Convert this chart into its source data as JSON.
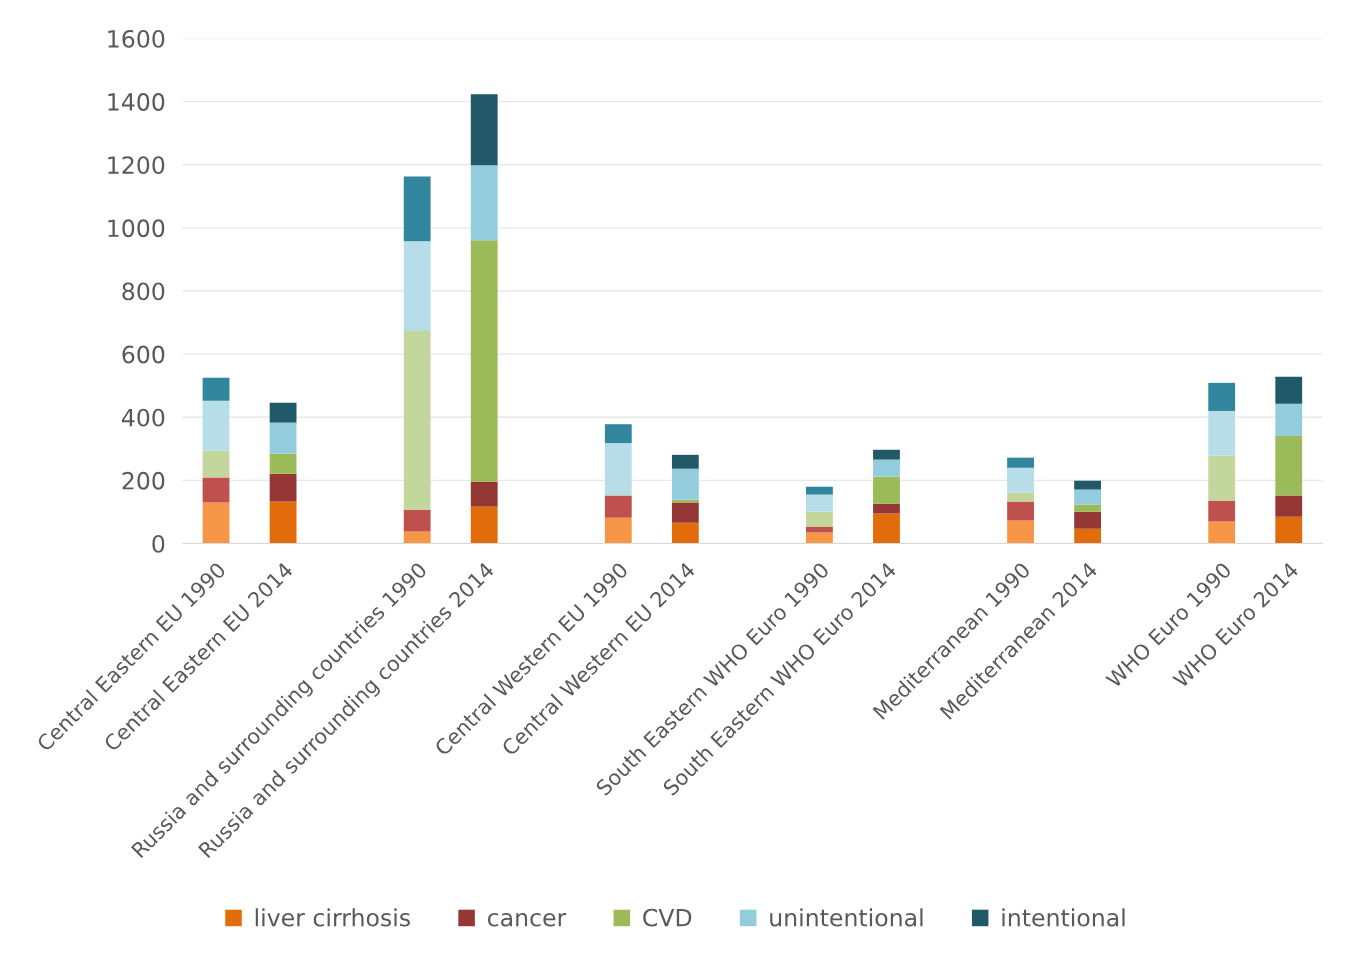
{
  "chart_data": {
    "type": "bar",
    "stacked": true,
    "grid": "y",
    "legend": "bottom",
    "categories": [
      "Central Eastern EU 1990",
      "Central Eastern EU 2014",
      null,
      "Russia and surrounding countries 1990",
      "Russia and surrounding countries 2014",
      null,
      "Central Western EU 1990",
      "Central Western EU 2014",
      null,
      "South Eastern WHO Euro 1990",
      "South Eastern WHO Euro 2014",
      null,
      "Mediterranean 1990",
      "Mediterranean 2014",
      null,
      "WHO Euro 1990",
      "WHO Euro 2014"
    ],
    "ylim": [
      0,
      1600
    ],
    "yticks": [
      0,
      200,
      400,
      600,
      800,
      1000,
      1200,
      1400,
      1600
    ],
    "series": [
      {
        "name": "liver cirrhosis",
        "color": "#e36c0a",
        "colors": [
          "#f79646",
          "#e36c0a",
          null,
          "#f79646",
          "#e36c0a",
          null,
          "#f79646",
          "#e36c0a",
          null,
          "#f79646",
          "#e36c0a",
          null,
          "#f79646",
          "#e36c0a",
          null,
          "#f79646",
          "#e36c0a"
        ],
        "values": [
          130,
          133,
          null,
          38,
          117,
          null,
          82,
          66,
          null,
          35,
          95,
          null,
          73,
          47,
          null,
          70,
          85
        ]
      },
      {
        "name": "cancer",
        "color": "#953735",
        "colors": [
          "#c0504d",
          "#953735",
          null,
          "#c0504d",
          "#953735",
          null,
          "#c0504d",
          "#953735",
          null,
          "#c0504d",
          "#953735",
          null,
          "#c0504d",
          "#953735",
          null,
          "#c0504d",
          "#953735"
        ],
        "values": [
          79,
          88,
          null,
          69,
          79,
          null,
          70,
          64,
          null,
          19,
          31,
          null,
          60,
          54,
          null,
          66,
          67
        ]
      },
      {
        "name": "CVD",
        "color": "#9bbb59",
        "colors": [
          "#c3d69b",
          "#9bbb59",
          null,
          "#c3d69b",
          "#9bbb59",
          null,
          "#c3d69b",
          "#9bbb59",
          null,
          "#c3d69b",
          "#9bbb59",
          null,
          "#c3d69b",
          "#9bbb59",
          null,
          "#c3d69b",
          "#9bbb59"
        ],
        "values": [
          85,
          64,
          null,
          566,
          765,
          null,
          2,
          9,
          null,
          47,
          86,
          null,
          28,
          22,
          null,
          142,
          189
        ]
      },
      {
        "name": "unintentional",
        "color": "#93cddd",
        "colors": [
          "#b7dee8",
          "#93cddd",
          null,
          "#b7dee8",
          "#93cddd",
          null,
          "#b7dee8",
          "#93cddd",
          null,
          "#b7dee8",
          "#93cddd",
          null,
          "#b7dee8",
          "#93cddd",
          null,
          "#b7dee8",
          "#93cddd"
        ],
        "values": [
          158,
          98,
          null,
          285,
          237,
          null,
          164,
          98,
          null,
          54,
          54,
          null,
          79,
          48,
          null,
          142,
          102
        ]
      },
      {
        "name": "intentional",
        "color": "#215968",
        "colors": [
          "#31859c",
          "#215968",
          null,
          "#31859c",
          "#215968",
          null,
          "#31859c",
          "#215968",
          null,
          "#31859c",
          "#215968",
          null,
          "#31859c",
          "#215968",
          null,
          "#31859c",
          "#215968"
        ],
        "values": [
          73,
          63,
          null,
          205,
          225,
          null,
          60,
          44,
          null,
          25,
          31,
          null,
          32,
          28,
          null,
          89,
          85
        ]
      }
    ]
  }
}
